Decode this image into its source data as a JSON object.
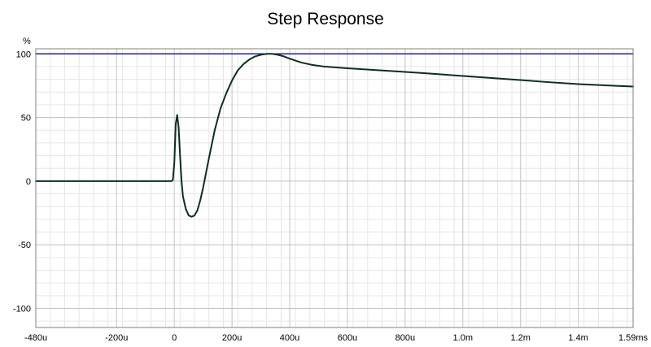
{
  "chart_data": {
    "type": "line",
    "title": "Step Response",
    "ylabel": "%",
    "xlabel": "",
    "xlim": [
      -480,
      1590
    ],
    "ylim": [
      -115,
      104
    ],
    "x_unit": "us",
    "grid": true,
    "x_ticks": [
      {
        "value": -480,
        "label": "-480u"
      },
      {
        "value": -200,
        "label": "-200u"
      },
      {
        "value": 0,
        "label": "0"
      },
      {
        "value": 200,
        "label": "200u"
      },
      {
        "value": 400,
        "label": "400u"
      },
      {
        "value": 600,
        "label": "600u"
      },
      {
        "value": 800,
        "label": "800u"
      },
      {
        "value": 1000,
        "label": "1.0m"
      },
      {
        "value": 1200,
        "label": "1.2m"
      },
      {
        "value": 1400,
        "label": "1.4m"
      },
      {
        "value": 1590,
        "label": "1.59ms"
      }
    ],
    "y_ticks": [
      {
        "value": 100,
        "label": "100"
      },
      {
        "value": 50,
        "label": "50"
      },
      {
        "value": 0,
        "label": "0"
      },
      {
        "value": -50,
        "label": "-50"
      },
      {
        "value": -100,
        "label": "-100"
      }
    ],
    "series": [
      {
        "color": "#0d2e1f",
        "points": [
          [
            -480,
            0
          ],
          [
            -20,
            0
          ],
          [
            -10,
            0
          ],
          [
            -5,
            1
          ],
          [
            0,
            14
          ],
          [
            5,
            45
          ],
          [
            10,
            52
          ],
          [
            15,
            42
          ],
          [
            20,
            20
          ],
          [
            25,
            0
          ],
          [
            30,
            -12
          ],
          [
            40,
            -22
          ],
          [
            50,
            -27
          ],
          [
            60,
            -28
          ],
          [
            70,
            -27
          ],
          [
            80,
            -23
          ],
          [
            90,
            -15
          ],
          [
            100,
            -5
          ],
          [
            120,
            18
          ],
          [
            140,
            40
          ],
          [
            160,
            57
          ],
          [
            180,
            69
          ],
          [
            200,
            79
          ],
          [
            220,
            87
          ],
          [
            240,
            92
          ],
          [
            260,
            95.5
          ],
          [
            280,
            98
          ],
          [
            300,
            99.3
          ],
          [
            320,
            100
          ],
          [
            340,
            100
          ],
          [
            360,
            99.2
          ],
          [
            380,
            98
          ],
          [
            400,
            96.2
          ],
          [
            440,
            93.2
          ],
          [
            480,
            91.2
          ],
          [
            520,
            90
          ],
          [
            600,
            88.7
          ],
          [
            700,
            87.2
          ],
          [
            800,
            85.8
          ],
          [
            900,
            84.3
          ],
          [
            1000,
            82.6
          ],
          [
            1100,
            81
          ],
          [
            1200,
            79.4
          ],
          [
            1300,
            77.7
          ],
          [
            1400,
            76.2
          ],
          [
            1500,
            75.2
          ],
          [
            1590,
            74.3
          ]
        ]
      },
      {
        "color": "#1d1da6",
        "points": [
          [
            -480,
            100
          ],
          [
            1590,
            100
          ]
        ]
      }
    ]
  }
}
